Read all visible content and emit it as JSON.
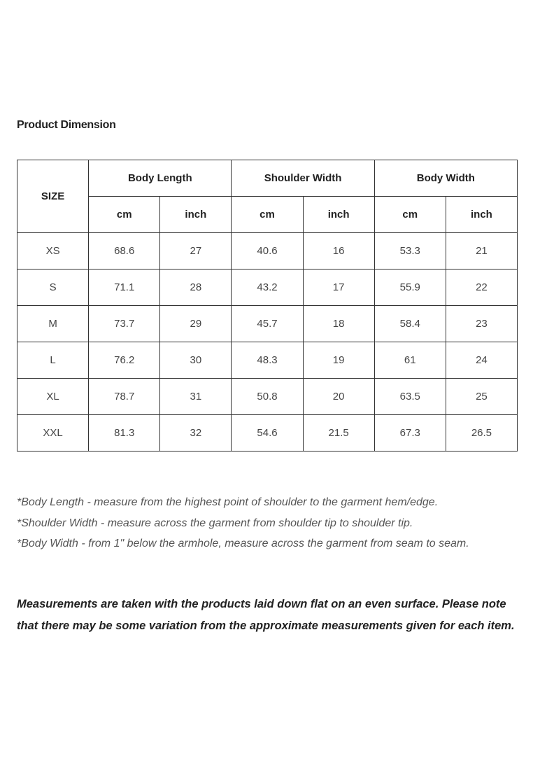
{
  "title": "Product Dimension",
  "table": {
    "size_header": "SIZE",
    "groups": [
      "Body Length",
      "Shoulder Width",
      "Body Width"
    ],
    "units": [
      "cm",
      "inch",
      "cm",
      "inch",
      "cm",
      "inch"
    ],
    "rows": [
      [
        "XS",
        "68.6",
        "27",
        "40.6",
        "16",
        "53.3",
        "21"
      ],
      [
        "S",
        "71.1",
        "28",
        "43.2",
        "17",
        "55.9",
        "22"
      ],
      [
        "M",
        "73.7",
        "29",
        "45.7",
        "18",
        "58.4",
        "23"
      ],
      [
        "L",
        "76.2",
        "30",
        "48.3",
        "19",
        "61",
        "24"
      ],
      [
        "XL",
        "78.7",
        "31",
        "50.8",
        "20",
        "63.5",
        "25"
      ],
      [
        "XXL",
        "81.3",
        "32",
        "54.6",
        "21.5",
        "67.3",
        "26.5"
      ]
    ]
  },
  "notes": [
    "*Body Length - measure from the highest point of shoulder to the garment hem/edge.",
    "*Shoulder Width - measure across the garment from shoulder tip to shoulder tip.",
    "*Body Width - from 1\" below the armhole, measure across the garment from seam to seam."
  ],
  "disclaimer": "Measurements are taken with the products laid down flat on an even surface. Please note that there may be some variation from the approximate measurements given for each item."
}
